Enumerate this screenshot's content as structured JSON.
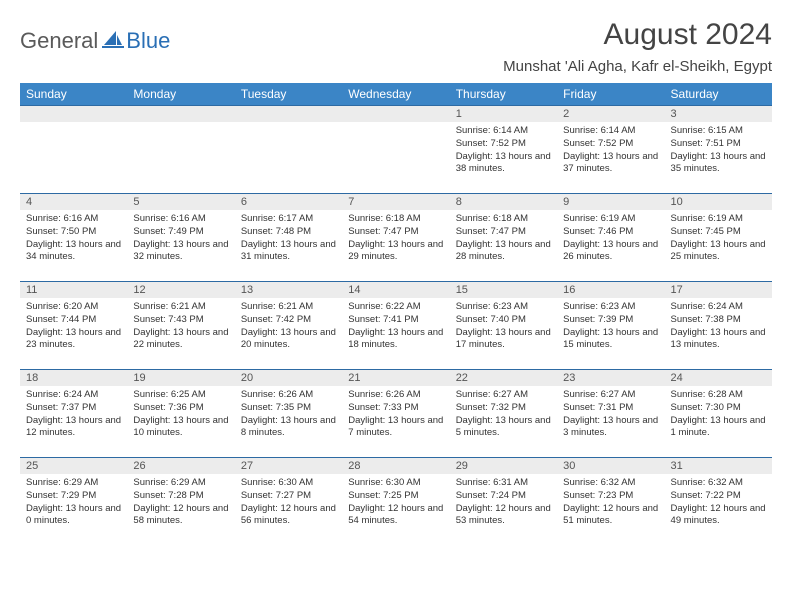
{
  "brand": {
    "part1": "General",
    "part2": "Blue"
  },
  "title": "August 2024",
  "location": "Munshat 'Ali Agha, Kafr el-Sheikh, Egypt",
  "colors": {
    "header_bg": "#3b85c6",
    "header_text": "#ffffff",
    "daynum_bg": "#ececec",
    "border": "#2d6aa3",
    "brand_gray": "#5a5a5a",
    "brand_blue": "#2a6fb5"
  },
  "weekdays": [
    "Sunday",
    "Monday",
    "Tuesday",
    "Wednesday",
    "Thursday",
    "Friday",
    "Saturday"
  ],
  "cells": [
    {
      "n": "",
      "sr": "",
      "ss": "",
      "dl": ""
    },
    {
      "n": "",
      "sr": "",
      "ss": "",
      "dl": ""
    },
    {
      "n": "",
      "sr": "",
      "ss": "",
      "dl": ""
    },
    {
      "n": "",
      "sr": "",
      "ss": "",
      "dl": ""
    },
    {
      "n": "1",
      "sr": "Sunrise: 6:14 AM",
      "ss": "Sunset: 7:52 PM",
      "dl": "Daylight: 13 hours and 38 minutes."
    },
    {
      "n": "2",
      "sr": "Sunrise: 6:14 AM",
      "ss": "Sunset: 7:52 PM",
      "dl": "Daylight: 13 hours and 37 minutes."
    },
    {
      "n": "3",
      "sr": "Sunrise: 6:15 AM",
      "ss": "Sunset: 7:51 PM",
      "dl": "Daylight: 13 hours and 35 minutes."
    },
    {
      "n": "4",
      "sr": "Sunrise: 6:16 AM",
      "ss": "Sunset: 7:50 PM",
      "dl": "Daylight: 13 hours and 34 minutes."
    },
    {
      "n": "5",
      "sr": "Sunrise: 6:16 AM",
      "ss": "Sunset: 7:49 PM",
      "dl": "Daylight: 13 hours and 32 minutes."
    },
    {
      "n": "6",
      "sr": "Sunrise: 6:17 AM",
      "ss": "Sunset: 7:48 PM",
      "dl": "Daylight: 13 hours and 31 minutes."
    },
    {
      "n": "7",
      "sr": "Sunrise: 6:18 AM",
      "ss": "Sunset: 7:47 PM",
      "dl": "Daylight: 13 hours and 29 minutes."
    },
    {
      "n": "8",
      "sr": "Sunrise: 6:18 AM",
      "ss": "Sunset: 7:47 PM",
      "dl": "Daylight: 13 hours and 28 minutes."
    },
    {
      "n": "9",
      "sr": "Sunrise: 6:19 AM",
      "ss": "Sunset: 7:46 PM",
      "dl": "Daylight: 13 hours and 26 minutes."
    },
    {
      "n": "10",
      "sr": "Sunrise: 6:19 AM",
      "ss": "Sunset: 7:45 PM",
      "dl": "Daylight: 13 hours and 25 minutes."
    },
    {
      "n": "11",
      "sr": "Sunrise: 6:20 AM",
      "ss": "Sunset: 7:44 PM",
      "dl": "Daylight: 13 hours and 23 minutes."
    },
    {
      "n": "12",
      "sr": "Sunrise: 6:21 AM",
      "ss": "Sunset: 7:43 PM",
      "dl": "Daylight: 13 hours and 22 minutes."
    },
    {
      "n": "13",
      "sr": "Sunrise: 6:21 AM",
      "ss": "Sunset: 7:42 PM",
      "dl": "Daylight: 13 hours and 20 minutes."
    },
    {
      "n": "14",
      "sr": "Sunrise: 6:22 AM",
      "ss": "Sunset: 7:41 PM",
      "dl": "Daylight: 13 hours and 18 minutes."
    },
    {
      "n": "15",
      "sr": "Sunrise: 6:23 AM",
      "ss": "Sunset: 7:40 PM",
      "dl": "Daylight: 13 hours and 17 minutes."
    },
    {
      "n": "16",
      "sr": "Sunrise: 6:23 AM",
      "ss": "Sunset: 7:39 PM",
      "dl": "Daylight: 13 hours and 15 minutes."
    },
    {
      "n": "17",
      "sr": "Sunrise: 6:24 AM",
      "ss": "Sunset: 7:38 PM",
      "dl": "Daylight: 13 hours and 13 minutes."
    },
    {
      "n": "18",
      "sr": "Sunrise: 6:24 AM",
      "ss": "Sunset: 7:37 PM",
      "dl": "Daylight: 13 hours and 12 minutes."
    },
    {
      "n": "19",
      "sr": "Sunrise: 6:25 AM",
      "ss": "Sunset: 7:36 PM",
      "dl": "Daylight: 13 hours and 10 minutes."
    },
    {
      "n": "20",
      "sr": "Sunrise: 6:26 AM",
      "ss": "Sunset: 7:35 PM",
      "dl": "Daylight: 13 hours and 8 minutes."
    },
    {
      "n": "21",
      "sr": "Sunrise: 6:26 AM",
      "ss": "Sunset: 7:33 PM",
      "dl": "Daylight: 13 hours and 7 minutes."
    },
    {
      "n": "22",
      "sr": "Sunrise: 6:27 AM",
      "ss": "Sunset: 7:32 PM",
      "dl": "Daylight: 13 hours and 5 minutes."
    },
    {
      "n": "23",
      "sr": "Sunrise: 6:27 AM",
      "ss": "Sunset: 7:31 PM",
      "dl": "Daylight: 13 hours and 3 minutes."
    },
    {
      "n": "24",
      "sr": "Sunrise: 6:28 AM",
      "ss": "Sunset: 7:30 PM",
      "dl": "Daylight: 13 hours and 1 minute."
    },
    {
      "n": "25",
      "sr": "Sunrise: 6:29 AM",
      "ss": "Sunset: 7:29 PM",
      "dl": "Daylight: 13 hours and 0 minutes."
    },
    {
      "n": "26",
      "sr": "Sunrise: 6:29 AM",
      "ss": "Sunset: 7:28 PM",
      "dl": "Daylight: 12 hours and 58 minutes."
    },
    {
      "n": "27",
      "sr": "Sunrise: 6:30 AM",
      "ss": "Sunset: 7:27 PM",
      "dl": "Daylight: 12 hours and 56 minutes."
    },
    {
      "n": "28",
      "sr": "Sunrise: 6:30 AM",
      "ss": "Sunset: 7:25 PM",
      "dl": "Daylight: 12 hours and 54 minutes."
    },
    {
      "n": "29",
      "sr": "Sunrise: 6:31 AM",
      "ss": "Sunset: 7:24 PM",
      "dl": "Daylight: 12 hours and 53 minutes."
    },
    {
      "n": "30",
      "sr": "Sunrise: 6:32 AM",
      "ss": "Sunset: 7:23 PM",
      "dl": "Daylight: 12 hours and 51 minutes."
    },
    {
      "n": "31",
      "sr": "Sunrise: 6:32 AM",
      "ss": "Sunset: 7:22 PM",
      "dl": "Daylight: 12 hours and 49 minutes."
    }
  ]
}
